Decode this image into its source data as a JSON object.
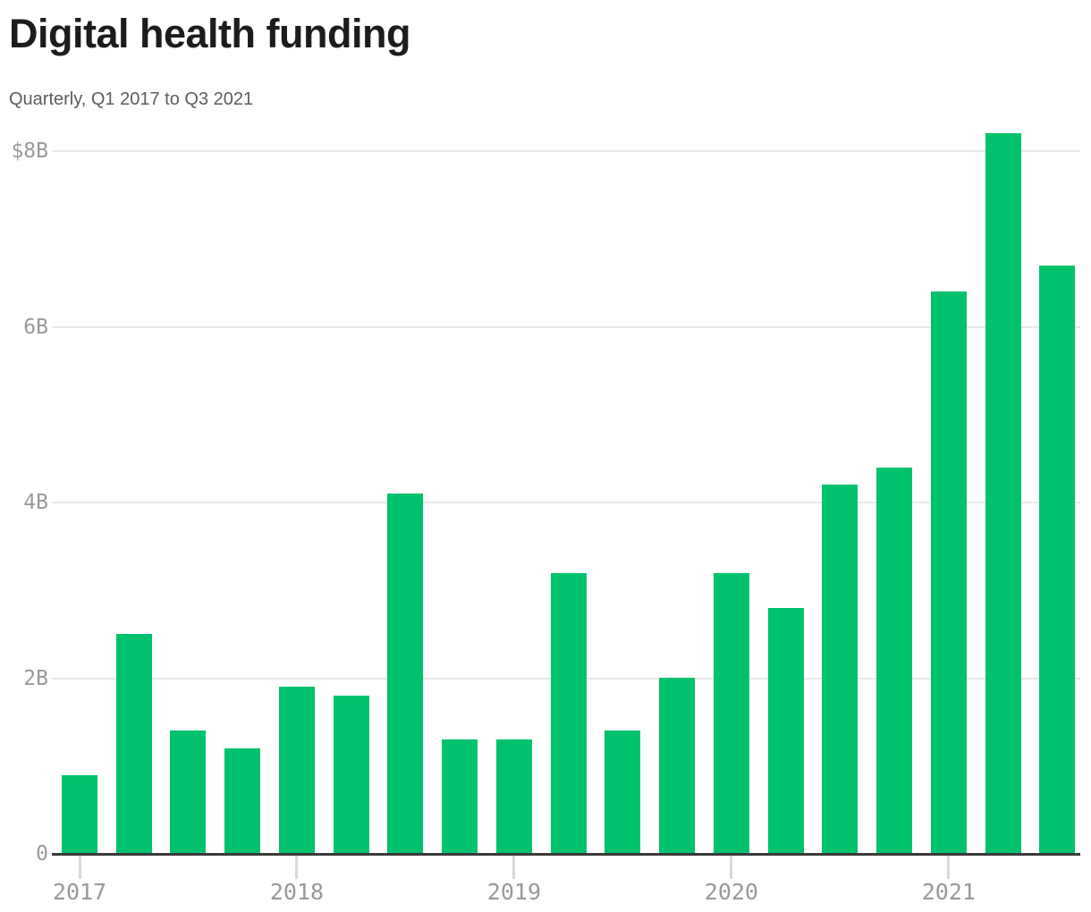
{
  "header": {
    "title": "Digital health funding",
    "subtitle": "Quarterly, Q1 2017 to Q3 2021"
  },
  "chart_data": {
    "type": "bar",
    "title": "Digital health funding",
    "subtitle": "Quarterly, Q1 2017 to Q3 2021",
    "unit": "USD billions",
    "categories": [
      "Q1 2017",
      "Q2 2017",
      "Q3 2017",
      "Q4 2017",
      "Q1 2018",
      "Q2 2018",
      "Q3 2018",
      "Q4 2018",
      "Q1 2019",
      "Q2 2019",
      "Q3 2019",
      "Q4 2019",
      "Q1 2020",
      "Q2 2020",
      "Q3 2020",
      "Q4 2020",
      "Q1 2021",
      "Q2 2021",
      "Q3 2021"
    ],
    "values": [
      0.9,
      2.5,
      1.4,
      1.2,
      1.9,
      1.8,
      4.1,
      1.3,
      1.3,
      3.2,
      1.4,
      2.0,
      3.2,
      2.8,
      4.2,
      4.4,
      6.4,
      8.2,
      6.7
    ],
    "xlabel": "",
    "ylabel": "",
    "ylim": [
      0,
      8.3
    ],
    "grid": true,
    "legend": "none",
    "y_ticks": [
      {
        "value": 8,
        "label": "$8B"
      },
      {
        "value": 6,
        "label": "6B"
      },
      {
        "value": 4,
        "label": "4B"
      },
      {
        "value": 2,
        "label": "2B"
      },
      {
        "value": 0,
        "label": "0"
      }
    ],
    "x_ticks": [
      {
        "index": 0,
        "label": "2017"
      },
      {
        "index": 4,
        "label": "2018"
      },
      {
        "index": 8,
        "label": "2019"
      },
      {
        "index": 12,
        "label": "2020"
      },
      {
        "index": 16,
        "label": "2021"
      }
    ],
    "colors": {
      "bar": "#00c26d",
      "gridline": "#e9e9e9",
      "baseline": "#3a3a3a",
      "tick_mark": "#d9d9d9",
      "axis_text": "#999999",
      "title_text": "#1c1c1c",
      "subtitle_text": "#5c5c5c"
    }
  }
}
